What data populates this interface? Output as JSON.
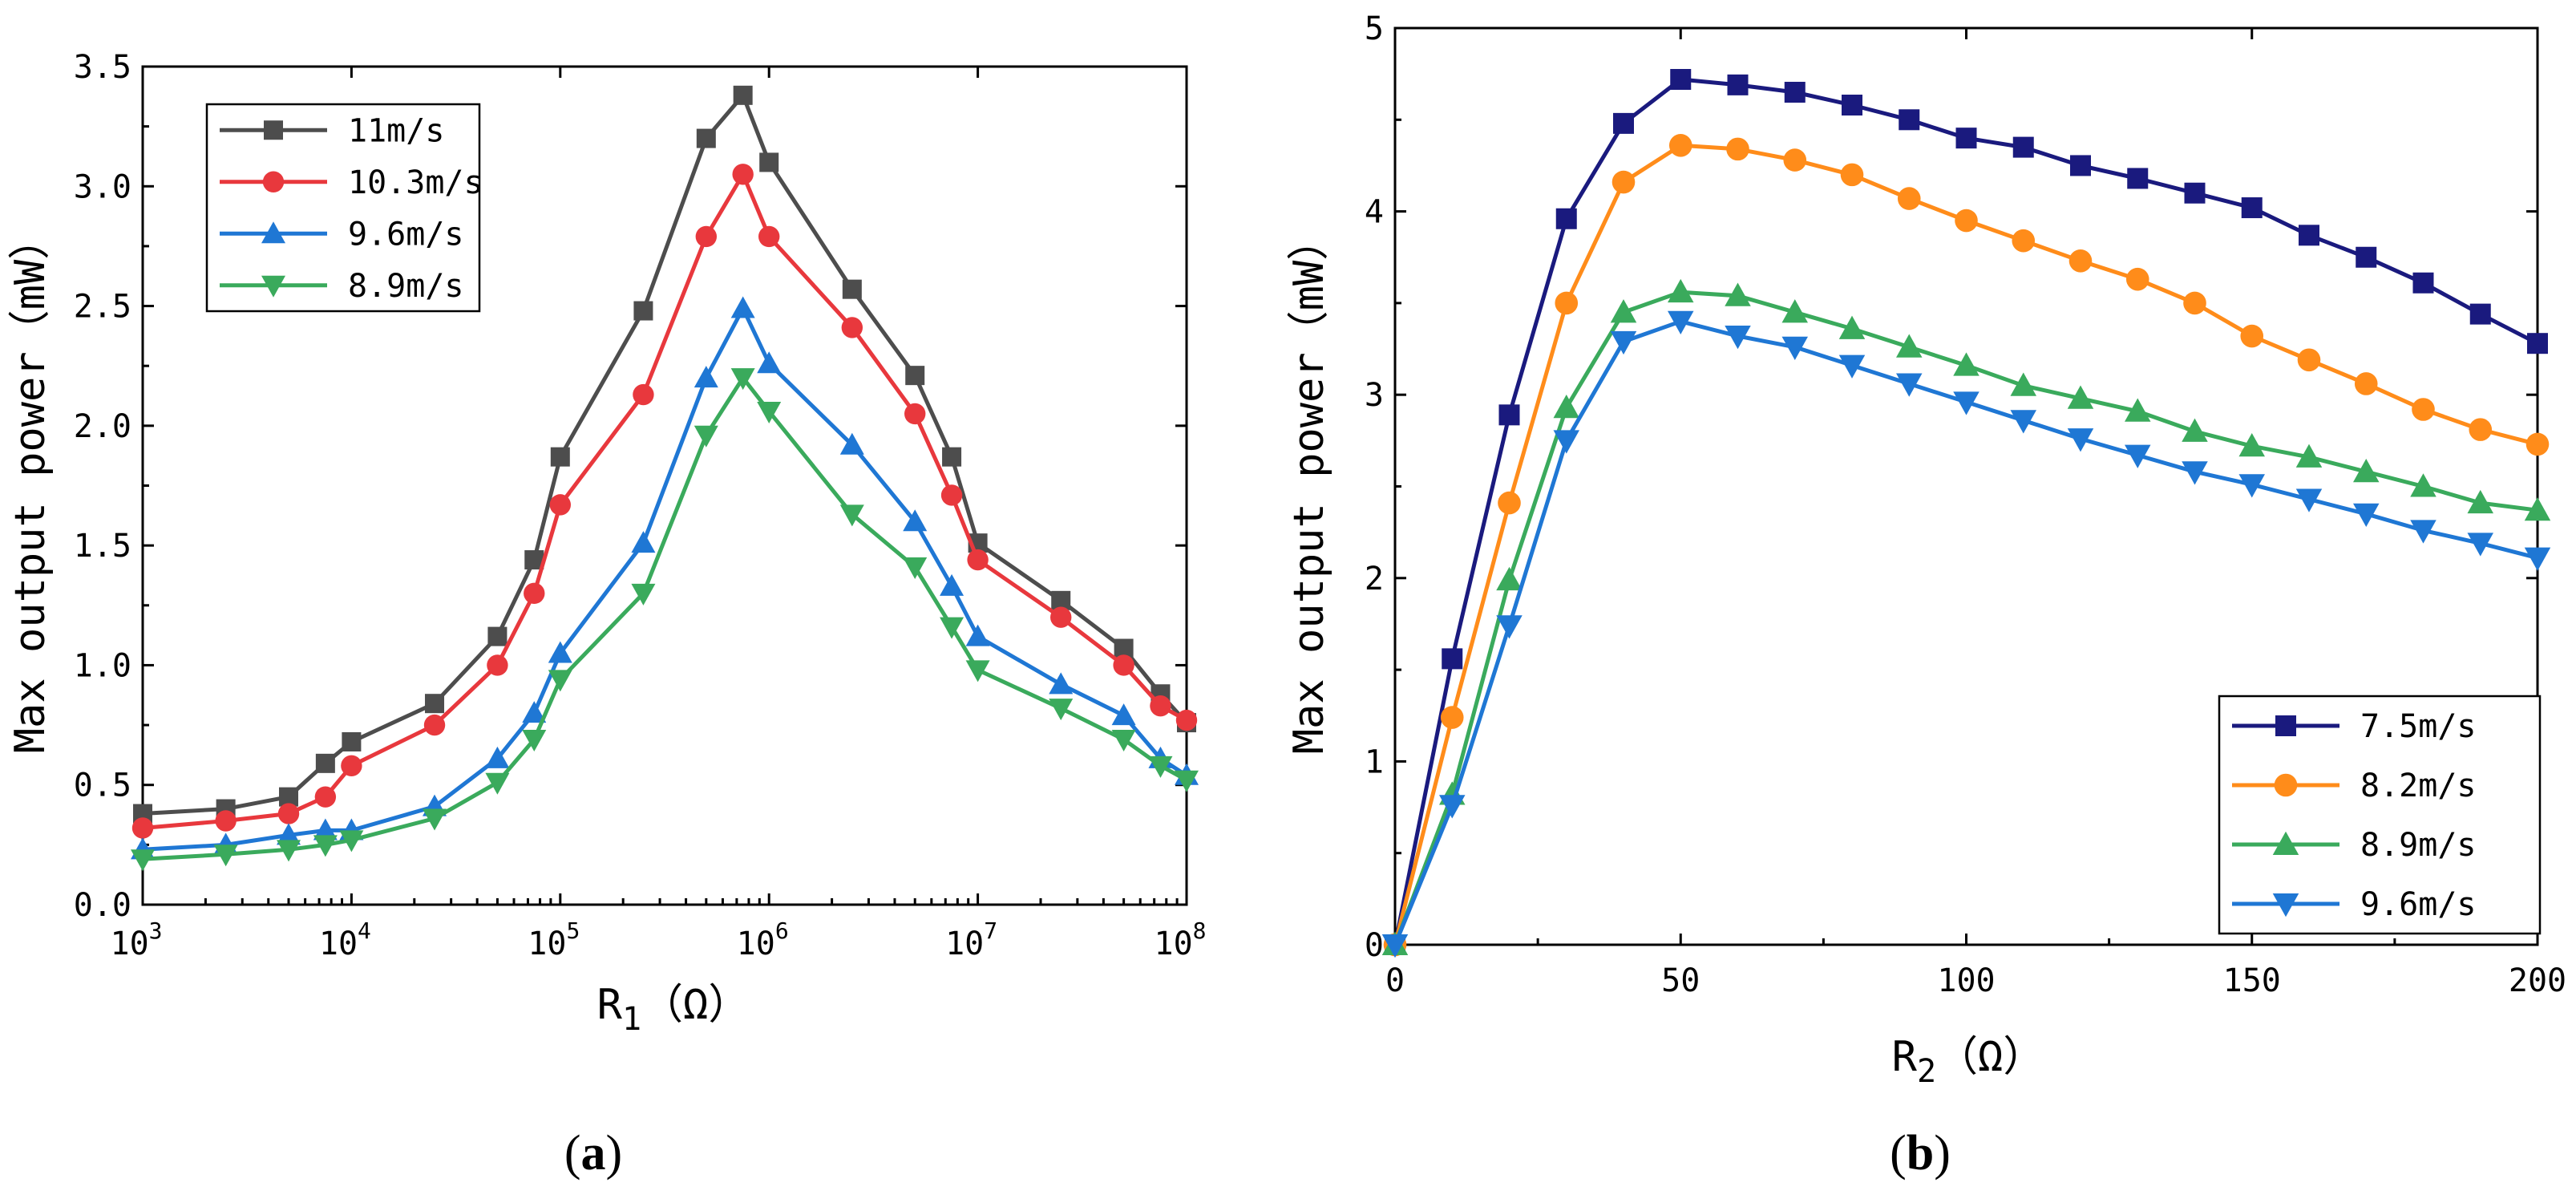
{
  "chart_data": [
    {
      "type": "line",
      "panel_label": "(a)",
      "panel_letter": "a",
      "xscale": "log",
      "xlabel": "R",
      "xlabel_sub": "1",
      "xlabel_unit": "（Ω）",
      "ylabel": "Max output power（mW）",
      "xlim": [
        1000,
        100000000
      ],
      "ylim": [
        0,
        3.5
      ],
      "xticks": [
        {
          "value": 1000,
          "base": "10",
          "exp": "3"
        },
        {
          "value": 10000,
          "base": "10",
          "exp": "4"
        },
        {
          "value": 100000,
          "base": "10",
          "exp": "5"
        },
        {
          "value": 1000000,
          "base": "10",
          "exp": "6"
        },
        {
          "value": 10000000,
          "base": "10",
          "exp": "7"
        },
        {
          "value": 100000000,
          "base": "10",
          "exp": "8"
        }
      ],
      "yticks": [
        {
          "value": 0,
          "label": "0.0"
        },
        {
          "value": 0.5,
          "label": "0.5"
        },
        {
          "value": 1.0,
          "label": "1.0"
        },
        {
          "value": 1.5,
          "label": "1.5"
        },
        {
          "value": 2.0,
          "label": "2.0"
        },
        {
          "value": 2.5,
          "label": "2.5"
        },
        {
          "value": 3.0,
          "label": "3.0"
        },
        {
          "value": 3.5,
          "label": "3.5"
        }
      ],
      "legend_position": "top-left",
      "x": [
        1000,
        2500,
        5000,
        7500,
        10000,
        25000,
        50000,
        75000,
        100000,
        250000,
        500000,
        750000,
        1000000,
        2500000,
        5000000,
        7500000,
        10000000,
        25000000,
        50000000,
        75000000,
        100000000
      ],
      "series": [
        {
          "name": "11m/s",
          "color": "#4d4d4d",
          "marker": "square",
          "values": [
            0.38,
            0.4,
            0.45,
            0.59,
            0.68,
            0.84,
            1.12,
            1.44,
            1.87,
            2.48,
            3.2,
            3.38,
            3.1,
            2.57,
            2.21,
            1.87,
            1.51,
            1.27,
            1.07,
            0.88,
            0.76
          ]
        },
        {
          "name": "10.3m/s",
          "color": "#e8383d",
          "marker": "circle",
          "values": [
            0.32,
            0.35,
            0.38,
            0.45,
            0.58,
            0.75,
            1.0,
            1.3,
            1.67,
            2.13,
            2.79,
            3.05,
            2.79,
            2.41,
            2.05,
            1.71,
            1.44,
            1.2,
            1.0,
            0.83,
            0.77
          ]
        },
        {
          "name": "9.6m/s",
          "color": "#1f77d4",
          "marker": "triangle-up",
          "values": [
            0.23,
            0.25,
            0.29,
            0.31,
            0.31,
            0.41,
            0.61,
            0.8,
            1.05,
            1.51,
            2.2,
            2.49,
            2.26,
            1.92,
            1.6,
            1.33,
            1.12,
            0.92,
            0.79,
            0.61,
            0.54
          ]
        },
        {
          "name": "8.9m/s",
          "color": "#3aaa5c",
          "marker": "triangle-down",
          "values": [
            0.19,
            0.21,
            0.23,
            0.25,
            0.27,
            0.36,
            0.51,
            0.69,
            0.94,
            1.3,
            1.96,
            2.2,
            2.06,
            1.63,
            1.41,
            1.16,
            0.98,
            0.82,
            0.69,
            0.58,
            0.52
          ]
        }
      ]
    },
    {
      "type": "line",
      "panel_label": "(b)",
      "panel_letter": "b",
      "xscale": "linear",
      "xlabel": "R",
      "xlabel_sub": "2",
      "xlabel_unit": "（Ω）",
      "ylabel": "Max output power（mW）",
      "xlim": [
        0,
        200
      ],
      "ylim": [
        0,
        5
      ],
      "xticks": [
        {
          "value": 0,
          "label": "0"
        },
        {
          "value": 50,
          "label": "50"
        },
        {
          "value": 100,
          "label": "100"
        },
        {
          "value": 150,
          "label": "150"
        },
        {
          "value": 200,
          "label": "200"
        }
      ],
      "yticks": [
        {
          "value": 0,
          "label": "0"
        },
        {
          "value": 1,
          "label": "1"
        },
        {
          "value": 2,
          "label": "2"
        },
        {
          "value": 3,
          "label": "3"
        },
        {
          "value": 4,
          "label": "4"
        },
        {
          "value": 5,
          "label": "5"
        }
      ],
      "legend_position": "bottom-right",
      "x": [
        0,
        10,
        20,
        30,
        40,
        50,
        60,
        70,
        80,
        90,
        100,
        110,
        120,
        130,
        140,
        150,
        160,
        170,
        180,
        190,
        200
      ],
      "series": [
        {
          "name": "7.5m/s",
          "color": "#1a1a7e",
          "marker": "square",
          "values": [
            0,
            1.56,
            2.89,
            3.96,
            4.48,
            4.72,
            4.69,
            4.65,
            4.58,
            4.5,
            4.4,
            4.35,
            4.25,
            4.18,
            4.1,
            4.02,
            3.87,
            3.75,
            3.61,
            3.44,
            3.28
          ]
        },
        {
          "name": "8.2m/s",
          "color": "#ff8c1a",
          "marker": "circle",
          "values": [
            0,
            1.24,
            2.41,
            3.5,
            4.16,
            4.36,
            4.34,
            4.28,
            4.2,
            4.07,
            3.95,
            3.84,
            3.73,
            3.63,
            3.5,
            3.32,
            3.19,
            3.06,
            2.92,
            2.81,
            2.73
          ]
        },
        {
          "name": "8.9m/s",
          "color": "#3aaa5c",
          "marker": "triangle-up",
          "values": [
            0,
            0.82,
            1.99,
            2.93,
            3.45,
            3.56,
            3.54,
            3.45,
            3.36,
            3.26,
            3.16,
            3.05,
            2.98,
            2.91,
            2.8,
            2.72,
            2.66,
            2.58,
            2.5,
            2.41,
            2.37
          ]
        },
        {
          "name": "9.6m/s",
          "color": "#1f77d4",
          "marker": "triangle-down",
          "values": [
            0,
            0.76,
            1.74,
            2.75,
            3.29,
            3.4,
            3.32,
            3.26,
            3.16,
            3.06,
            2.96,
            2.86,
            2.76,
            2.67,
            2.58,
            2.51,
            2.43,
            2.35,
            2.26,
            2.19,
            2.11
          ]
        }
      ]
    }
  ]
}
